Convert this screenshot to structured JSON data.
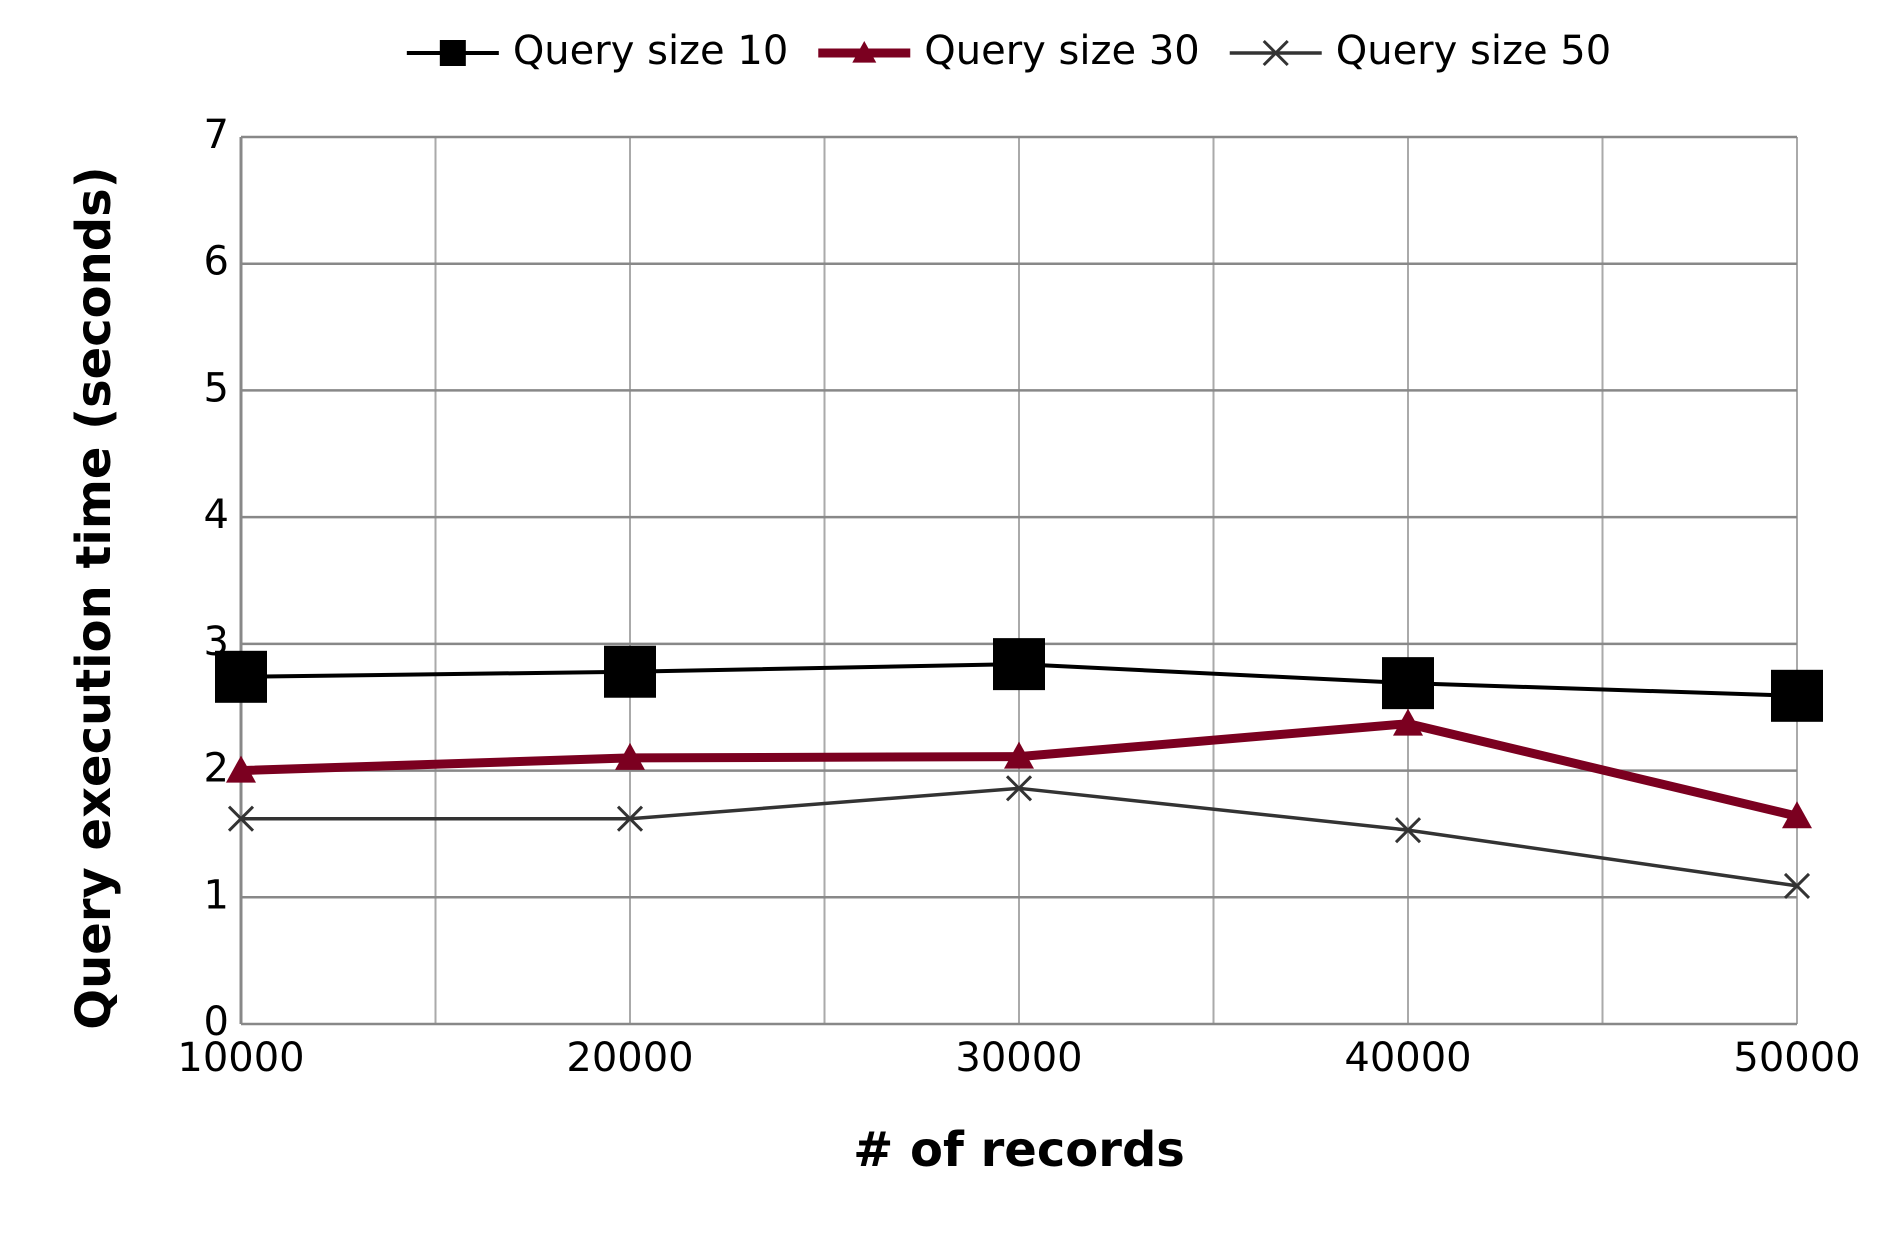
{
  "chart_data": {
    "type": "line",
    "x_label": "# of records",
    "y_label": "Query execution time (seconds)",
    "x": [
      10000,
      20000,
      30000,
      40000,
      50000
    ],
    "xlim": [
      10000,
      50000
    ],
    "xticks": [
      10000,
      20000,
      30000,
      40000,
      50000
    ],
    "ylim": [
      0,
      7
    ],
    "yticks": [
      0,
      1,
      2,
      3,
      4,
      5,
      6,
      7
    ],
    "grid": true,
    "legend": "top",
    "series": [
      {
        "name": "Query size 10",
        "color": "#000000",
        "marker": "square",
        "values": [
          2.74,
          2.78,
          2.84,
          2.69,
          2.59
        ]
      },
      {
        "name": "Query size 30",
        "color": "#7b0020",
        "marker": "triangle",
        "values": [
          2.0,
          2.1,
          2.11,
          2.37,
          1.64
        ]
      },
      {
        "name": "Query size 50",
        "color": "#333333",
        "marker": "x",
        "values": [
          1.62,
          1.62,
          1.86,
          1.53,
          1.09
        ]
      }
    ]
  }
}
